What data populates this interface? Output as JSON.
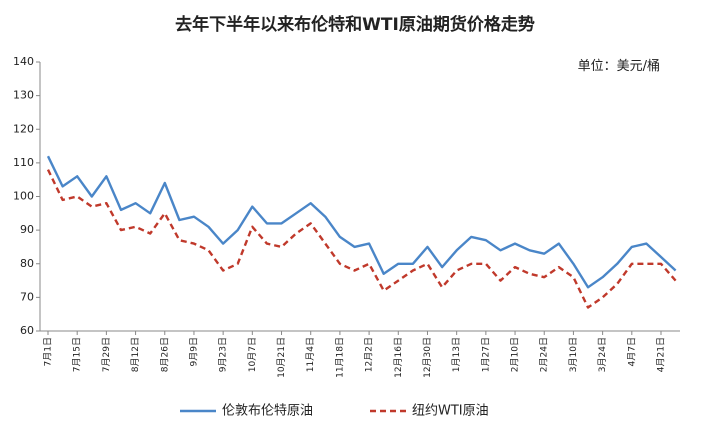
{
  "chart_data": {
    "type": "line",
    "title": "去年下半年以来布伦特和WTI原油期货价格走势",
    "unit_label": "单位：美元/桶",
    "categories": [
      "7月1日",
      null,
      "7月15日",
      null,
      "7月29日",
      null,
      "8月12日",
      null,
      "8月26日",
      null,
      "9月9日",
      null,
      "9月23日",
      null,
      "10月7日",
      null,
      "10月21日",
      null,
      "11月4日",
      null,
      "11月18日",
      null,
      "12月2日",
      null,
      "12月16日",
      null,
      "12月30日",
      null,
      "1月13日",
      null,
      "1月27日",
      null,
      "2月10日",
      null,
      "2月24日",
      null,
      "3月10日",
      null,
      "3月24日",
      null,
      "4月7日",
      null,
      "4月21日",
      null
    ],
    "series": [
      {
        "name": "伦敦布伦特原油",
        "color": "#4a86c8",
        "dash": false,
        "values": [
          112,
          103,
          106,
          100,
          106,
          96,
          98,
          95,
          104,
          93,
          94,
          91,
          86,
          90,
          97,
          92,
          92,
          95,
          98,
          94,
          88,
          85,
          86,
          77,
          80,
          80,
          85,
          79,
          84,
          88,
          87,
          84,
          86,
          84,
          83,
          86,
          80,
          73,
          76,
          80,
          85,
          86,
          82,
          78
        ]
      },
      {
        "name": "纽约WTI原油",
        "color": "#c0392b",
        "dash": true,
        "values": [
          108,
          99,
          100,
          97,
          98,
          90,
          91,
          89,
          95,
          87,
          86,
          84,
          78,
          80,
          91,
          86,
          85,
          89,
          92,
          86,
          80,
          78,
          80,
          72,
          75,
          78,
          80,
          73,
          78,
          80,
          80,
          75,
          79,
          77,
          76,
          79,
          76,
          67,
          70,
          74,
          80,
          80,
          80,
          75
        ]
      }
    ],
    "ylim": [
      60,
      140
    ],
    "yticks": [
      60,
      70,
      80,
      90,
      100,
      110,
      120,
      130,
      140
    ],
    "grid": false,
    "legend": "bottom"
  }
}
